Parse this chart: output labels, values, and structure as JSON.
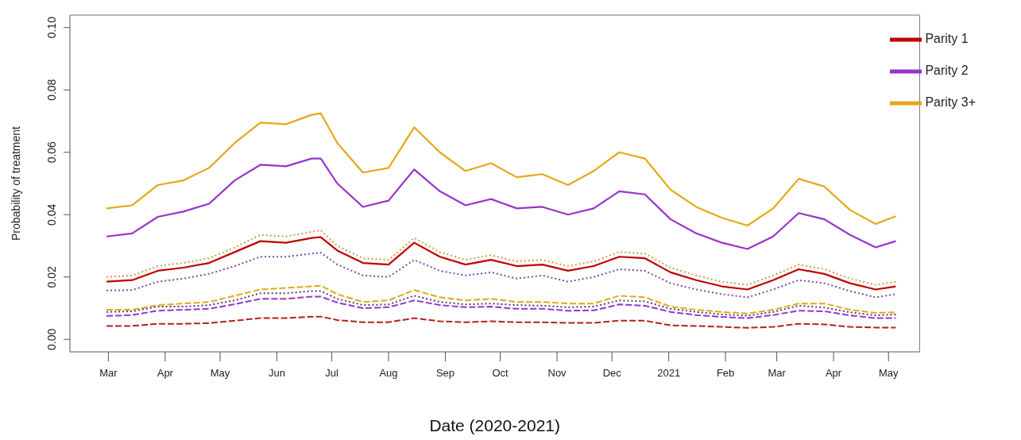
{
  "chart_data": {
    "type": "line",
    "xlabel": "Date (2020-2021)",
    "ylabel": "Probability of treatment",
    "x": [
      "2020-02-29",
      "2020-03-14",
      "2020-03-28",
      "2020-04-11",
      "2020-04-25",
      "2020-05-09",
      "2020-05-23",
      "2020-06-06",
      "2020-06-20",
      "2020-06-25",
      "2020-07-04",
      "2020-07-18",
      "2020-08-01",
      "2020-08-15",
      "2020-08-29",
      "2020-09-12",
      "2020-09-26",
      "2020-10-10",
      "2020-10-24",
      "2020-11-07",
      "2020-11-21",
      "2020-12-05",
      "2020-12-19",
      "2021-01-02",
      "2021-01-16",
      "2021-01-30",
      "2021-02-13",
      "2021-02-27",
      "2021-03-13",
      "2021-03-27",
      "2021-04-10",
      "2021-04-24",
      "2021-05-05"
    ],
    "series": [
      {
        "name": "Parity 1",
        "color": "#c00000",
        "line_style": "solid",
        "values": [
          0.0185,
          0.019,
          0.022,
          0.023,
          0.0245,
          0.028,
          0.0315,
          0.031,
          0.0325,
          0.0328,
          0.0285,
          0.0245,
          0.024,
          0.031,
          0.0265,
          0.024,
          0.0255,
          0.0235,
          0.024,
          0.022,
          0.0235,
          0.0265,
          0.026,
          0.0215,
          0.019,
          0.017,
          0.016,
          0.019,
          0.0225,
          0.021,
          0.018,
          0.016,
          0.017
        ]
      },
      {
        "name": "Parity 2",
        "color": "#9933cc",
        "line_style": "solid",
        "values": [
          0.033,
          0.034,
          0.0393,
          0.041,
          0.0435,
          0.051,
          0.056,
          0.0555,
          0.058,
          0.058,
          0.05,
          0.0425,
          0.0445,
          0.0545,
          0.0475,
          0.043,
          0.045,
          0.042,
          0.0425,
          0.04,
          0.042,
          0.0475,
          0.0465,
          0.0385,
          0.034,
          0.031,
          0.029,
          0.033,
          0.0405,
          0.0385,
          0.0335,
          0.0295,
          0.0315
        ]
      },
      {
        "name": "Parity 3+",
        "color": "#e6a817",
        "line_style": "solid",
        "values": [
          0.042,
          0.043,
          0.0495,
          0.051,
          0.055,
          0.063,
          0.0695,
          0.069,
          0.072,
          0.0725,
          0.063,
          0.0535,
          0.055,
          0.068,
          0.06,
          0.054,
          0.0565,
          0.052,
          0.053,
          0.0495,
          0.054,
          0.06,
          0.058,
          0.048,
          0.0425,
          0.039,
          0.0365,
          0.042,
          0.0515,
          0.049,
          0.0415,
          0.037,
          0.0395
        ]
      },
      {
        "color": "#c9a04a",
        "line_style": "dotted",
        "values": [
          0.02,
          0.0205,
          0.0235,
          0.0245,
          0.026,
          0.0295,
          0.0335,
          0.033,
          0.0345,
          0.035,
          0.03,
          0.026,
          0.0255,
          0.0325,
          0.028,
          0.0255,
          0.027,
          0.025,
          0.0255,
          0.0235,
          0.025,
          0.028,
          0.0275,
          0.023,
          0.0205,
          0.0185,
          0.0175,
          0.0205,
          0.024,
          0.0225,
          0.0195,
          0.0175,
          0.0185
        ]
      },
      {
        "color": "#7b4aa8",
        "line_style": "dotted",
        "values": [
          0.0157,
          0.0158,
          0.0185,
          0.0195,
          0.021,
          0.0235,
          0.0265,
          0.0265,
          0.0275,
          0.0278,
          0.024,
          0.0205,
          0.02,
          0.0255,
          0.022,
          0.0205,
          0.0215,
          0.0195,
          0.0205,
          0.0185,
          0.02,
          0.0225,
          0.022,
          0.018,
          0.016,
          0.0145,
          0.0135,
          0.016,
          0.019,
          0.018,
          0.0155,
          0.0135,
          0.0145
        ]
      },
      {
        "color": "#e6a817",
        "line_style": "dashed",
        "values": [
          0.0095,
          0.0095,
          0.011,
          0.0115,
          0.012,
          0.014,
          0.016,
          0.0165,
          0.017,
          0.0172,
          0.0145,
          0.012,
          0.0125,
          0.0158,
          0.0135,
          0.0125,
          0.013,
          0.012,
          0.012,
          0.0115,
          0.0115,
          0.014,
          0.0135,
          0.0105,
          0.0095,
          0.0088,
          0.0083,
          0.0095,
          0.0115,
          0.0115,
          0.0095,
          0.0085,
          0.0087
        ]
      },
      {
        "color": "#553a78",
        "line_style": "dotted",
        "values": [
          0.0088,
          0.009,
          0.0105,
          0.0105,
          0.011,
          0.0125,
          0.0148,
          0.0148,
          0.0155,
          0.0155,
          0.013,
          0.011,
          0.0112,
          0.014,
          0.012,
          0.0112,
          0.0115,
          0.011,
          0.0108,
          0.0103,
          0.0105,
          0.0125,
          0.0122,
          0.0098,
          0.0088,
          0.008,
          0.0076,
          0.0088,
          0.0108,
          0.0102,
          0.0087,
          0.0077,
          0.008
        ]
      },
      {
        "color": "#9933cc",
        "line_style": "dashed",
        "values": [
          0.0075,
          0.0078,
          0.0092,
          0.0095,
          0.0098,
          0.0113,
          0.013,
          0.013,
          0.0137,
          0.0137,
          0.0118,
          0.01,
          0.0103,
          0.0125,
          0.011,
          0.0103,
          0.0105,
          0.0098,
          0.0098,
          0.0092,
          0.0093,
          0.0112,
          0.0108,
          0.0088,
          0.0078,
          0.0072,
          0.0068,
          0.0078,
          0.0092,
          0.009,
          0.0077,
          0.0068,
          0.0068
        ]
      },
      {
        "color": "#b22222",
        "line_style": "dashed",
        "values": [
          0.0043,
          0.0043,
          0.005,
          0.005,
          0.0052,
          0.006,
          0.0068,
          0.0068,
          0.0073,
          0.0073,
          0.0062,
          0.0055,
          0.0055,
          0.0068,
          0.0058,
          0.0055,
          0.0058,
          0.0055,
          0.0055,
          0.0053,
          0.0053,
          0.006,
          0.006,
          0.0045,
          0.0043,
          0.004,
          0.0037,
          0.004,
          0.005,
          0.0048,
          0.004,
          0.0038,
          0.0038
        ]
      }
    ],
    "xlim": [
      "2020-02-09",
      "2021-05-18"
    ],
    "xticks": [
      {
        "value": "2020-03-01",
        "label": "Mar"
      },
      {
        "value": "2020-04-01",
        "label": "Apr"
      },
      {
        "value": "2020-05-01",
        "label": "May"
      },
      {
        "value": "2020-06-01",
        "label": "Jun"
      },
      {
        "value": "2020-07-01",
        "label": "Jul"
      },
      {
        "value": "2020-08-01",
        "label": "Aug"
      },
      {
        "value": "2020-09-01",
        "label": "Sep"
      },
      {
        "value": "2020-10-01",
        "label": "Oct"
      },
      {
        "value": "2020-11-01",
        "label": "Nov"
      },
      {
        "value": "2020-12-01",
        "label": "Dec"
      },
      {
        "value": "2021-01-01",
        "label": "2021"
      },
      {
        "value": "2021-02-01",
        "label": "Feb"
      },
      {
        "value": "2021-03-01",
        "label": "Mar"
      },
      {
        "value": "2021-04-01",
        "label": "Apr"
      },
      {
        "value": "2021-05-01",
        "label": "May"
      }
    ],
    "ylim": [
      -0.004,
      0.104
    ],
    "yticks": [
      {
        "value": 0,
        "label": "0.00"
      },
      {
        "value": 0.02,
        "label": "0.02"
      },
      {
        "value": 0.04,
        "label": "0.04"
      },
      {
        "value": 0.06,
        "label": "0.06"
      },
      {
        "value": 0.08,
        "label": "0.08"
      },
      {
        "value": 0.1,
        "label": "0.10"
      }
    ],
    "grid": false,
    "legend": "top right",
    "marker": "none"
  }
}
